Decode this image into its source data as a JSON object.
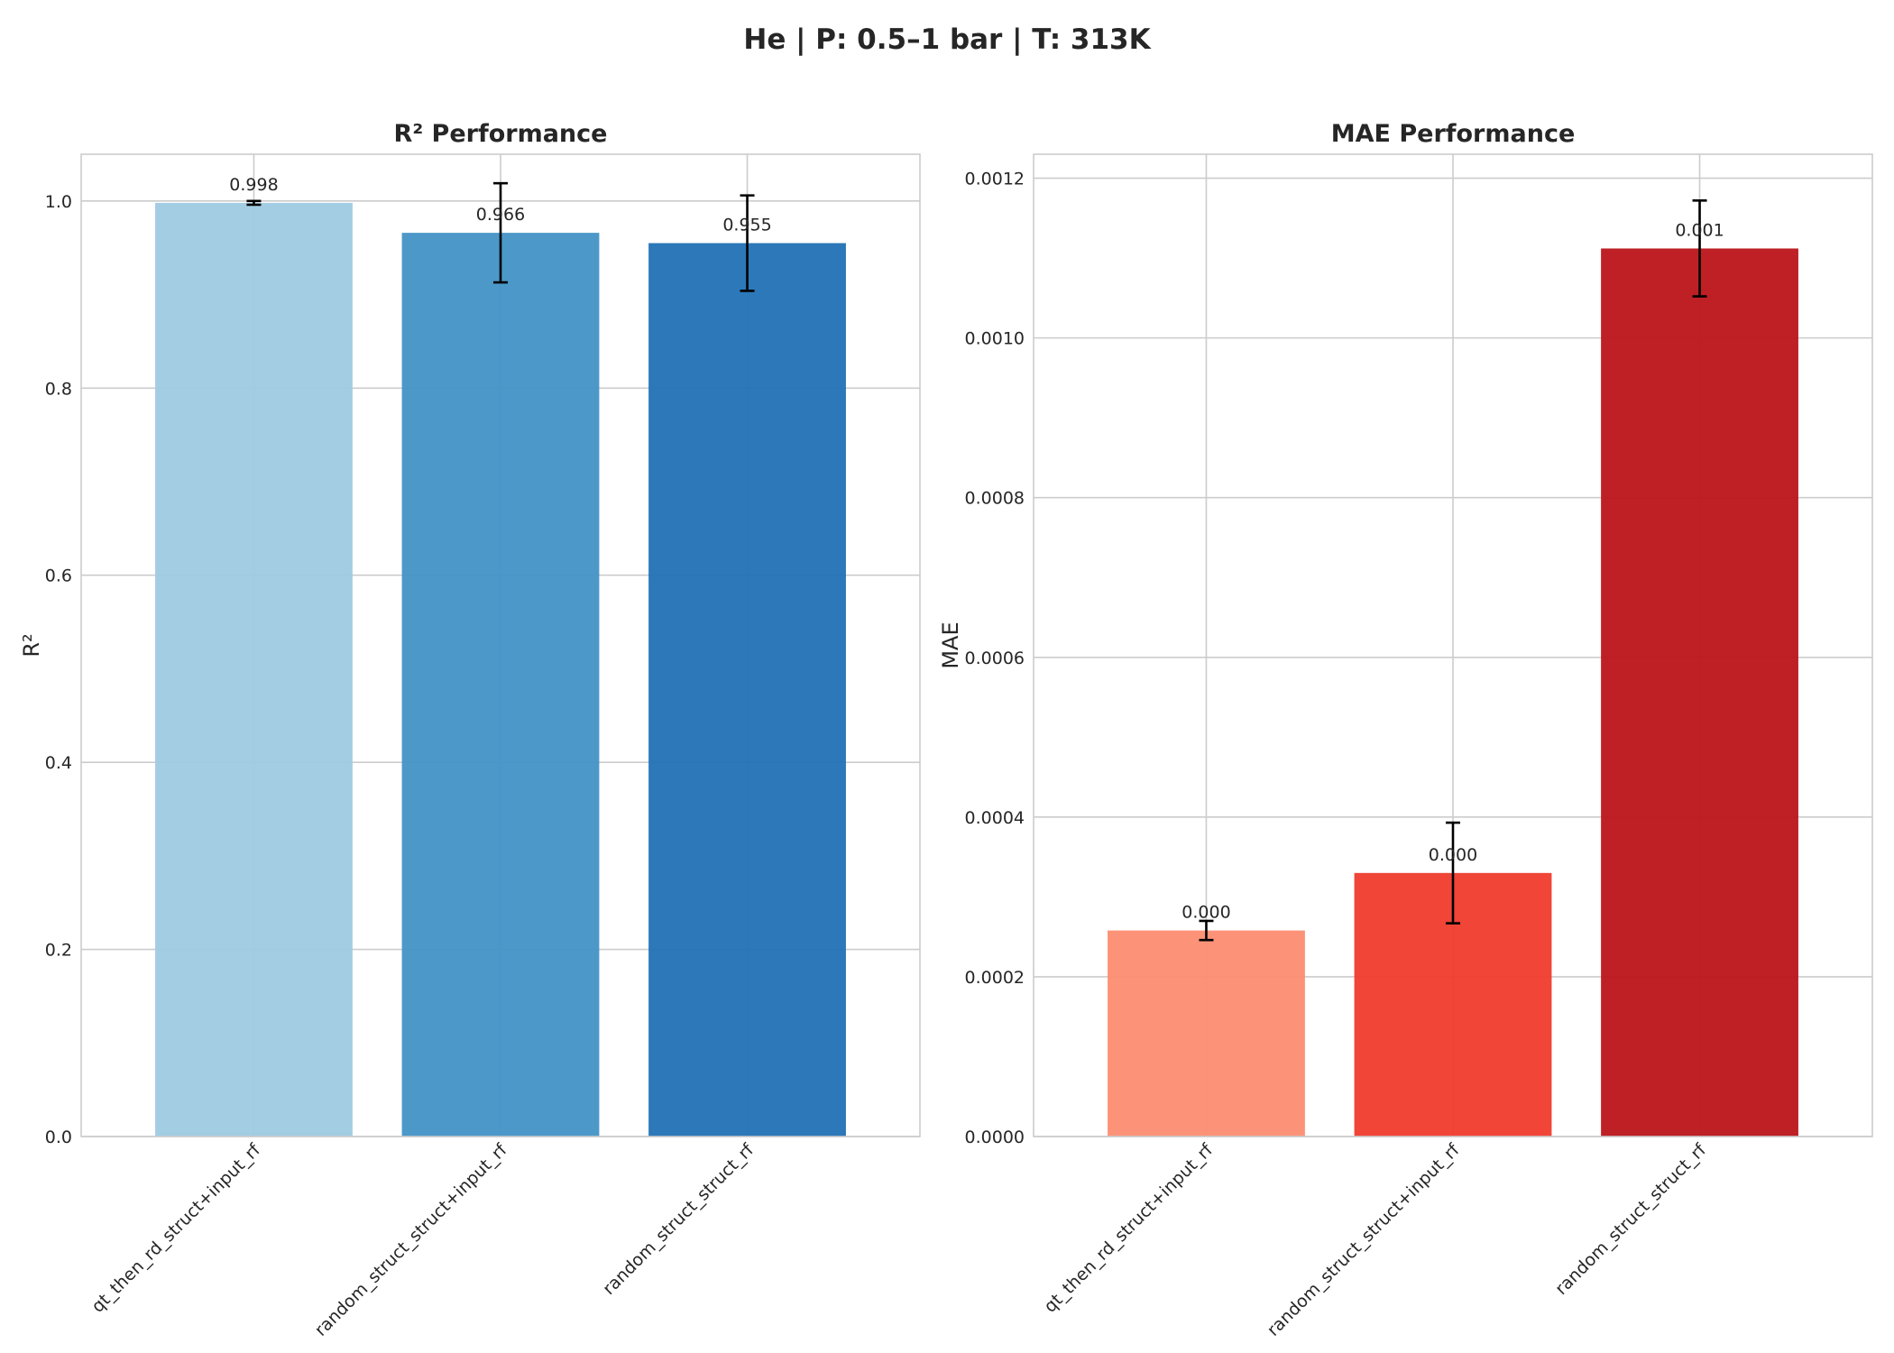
{
  "suptitle": "He | P: 0.5–1 bar | T: 313K",
  "chart_data": [
    {
      "type": "bar",
      "title": "R² Performance",
      "xlabel": "",
      "ylabel": "R²",
      "categories": [
        "qt_then_rd_struct+input_rf",
        "random_struct_struct+input_rf",
        "random_struct_struct_rf"
      ],
      "values": [
        0.998,
        0.966,
        0.955
      ],
      "errors": [
        0.002,
        0.053,
        0.051
      ],
      "data_labels": [
        "0.998",
        "0.966",
        "0.955"
      ],
      "colors": [
        "#9ecae1",
        "#4292c6",
        "#2171b5"
      ],
      "ylim": [
        0,
        1.05
      ],
      "yticks": [
        0.0,
        0.2,
        0.4,
        0.6,
        0.8,
        1.0
      ],
      "ytick_labels": [
        "0.0",
        "0.2",
        "0.4",
        "0.6",
        "0.8",
        "1.0"
      ],
      "grid": true,
      "legend": "none"
    },
    {
      "type": "bar",
      "title": "MAE Performance",
      "xlabel": "",
      "ylabel": "MAE",
      "categories": [
        "qt_then_rd_struct+input_rf",
        "random_struct_struct+input_rf",
        "random_struct_struct_rf"
      ],
      "values": [
        0.000258,
        0.00033,
        0.001112
      ],
      "errors": [
        1.2e-05,
        6.3e-05,
        6e-05
      ],
      "data_labels": [
        "0.000",
        "0.000",
        "0.001"
      ],
      "colors": [
        "#fc8d72",
        "#ef3b2c",
        "#bb141a"
      ],
      "ylim": [
        0,
        0.00123
      ],
      "yticks": [
        0.0,
        0.0002,
        0.0004,
        0.0006,
        0.0008,
        0.001,
        0.0012
      ],
      "ytick_labels": [
        "0.0000",
        "0.0002",
        "0.0004",
        "0.0006",
        "0.0008",
        "0.0010",
        "0.0012"
      ],
      "grid": true,
      "legend": "none"
    }
  ]
}
